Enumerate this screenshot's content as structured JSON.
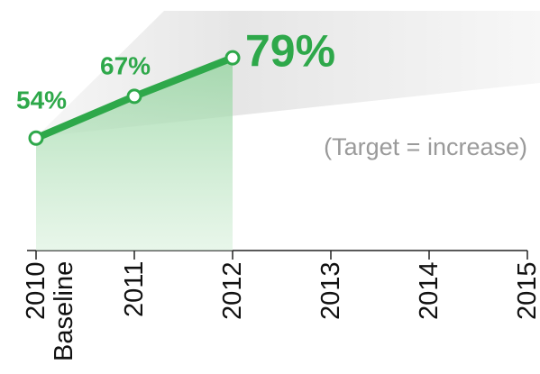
{
  "chart_data": {
    "type": "line",
    "categories": [
      "2010\nBaseline",
      "2011",
      "2012",
      "2013",
      "2014",
      "2015"
    ],
    "series": [
      {
        "name": null,
        "color": "#2ea84a",
        "values": [
          54,
          67,
          79,
          null,
          null,
          null
        ],
        "value_labels": [
          "54%",
          "67%",
          "79%",
          null,
          null,
          null
        ]
      }
    ],
    "annotation": "(Target = increase)",
    "ylim": [
      19,
      97
    ]
  }
}
